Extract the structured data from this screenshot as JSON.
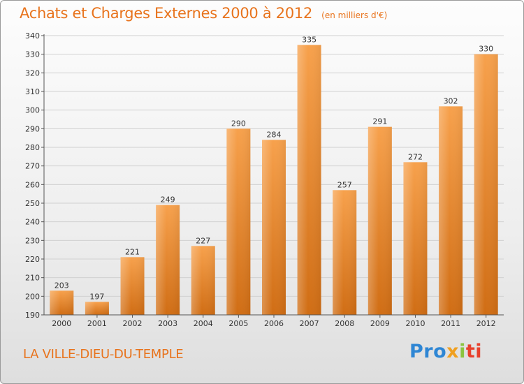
{
  "header": {
    "title": "Achats et Charges Externes 2000 à 2012",
    "unit": "(en milliers d'€)"
  },
  "footer": {
    "city": "LA VILLE-DIEU-DU-TEMPLE",
    "logo": [
      "Pro",
      "x",
      "i",
      "ti"
    ]
  },
  "colors": {
    "accent": "#e8731c",
    "bar_top": "#f7a14c",
    "bar_bottom": "#d06d14"
  },
  "chart_data": {
    "type": "bar",
    "title": "Achats et Charges Externes 2000 à 2012",
    "categories": [
      "2000",
      "2001",
      "2002",
      "2003",
      "2004",
      "2005",
      "2006",
      "2007",
      "2008",
      "2009",
      "2010",
      "2011",
      "2012"
    ],
    "values": [
      203,
      197,
      221,
      249,
      227,
      290,
      284,
      335,
      257,
      291,
      272,
      302,
      330
    ],
    "xlabel": "",
    "ylabel": "",
    "ylim": [
      190,
      340
    ],
    "yticks": [
      190,
      200,
      210,
      220,
      230,
      240,
      250,
      260,
      270,
      280,
      290,
      300,
      310,
      320,
      330,
      340
    ],
    "grid": true,
    "data_labels": true
  }
}
